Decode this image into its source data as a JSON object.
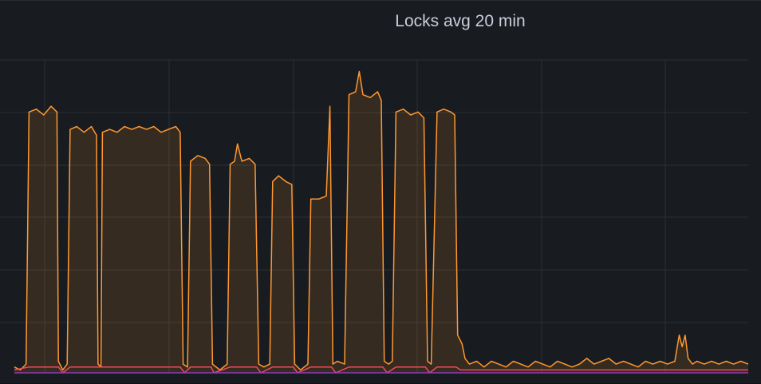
{
  "panel": {
    "title": "Locks avg 20 min"
  },
  "chart_data": {
    "type": "area",
    "title": "Locks avg 20 min",
    "xlabel": "",
    "ylabel": "",
    "grid": true,
    "x_grid_count": 6,
    "y_grid_count": 6,
    "ylim": [
      0,
      100
    ],
    "xlim": [
      0,
      100
    ],
    "series": [
      {
        "color": "#ff9830",
        "fill": "rgba(255,152,48,0.13)",
        "points": [
          [
            0,
            2
          ],
          [
            0.8,
            1
          ],
          [
            1.6,
            3
          ],
          [
            2,
            90
          ],
          [
            3,
            91
          ],
          [
            4,
            89
          ],
          [
            5,
            92
          ],
          [
            5.8,
            90
          ],
          [
            6,
            4
          ],
          [
            6.6,
            1
          ],
          [
            7.2,
            3
          ],
          [
            7.6,
            84
          ],
          [
            8.5,
            85
          ],
          [
            9.5,
            83
          ],
          [
            10.5,
            85
          ],
          [
            11.2,
            82
          ],
          [
            11.4,
            3
          ],
          [
            11.8,
            2
          ],
          [
            12,
            83
          ],
          [
            13,
            84
          ],
          [
            14,
            83
          ],
          [
            15,
            85
          ],
          [
            16,
            84
          ],
          [
            17,
            85
          ],
          [
            18,
            84
          ],
          [
            19,
            85
          ],
          [
            20,
            83
          ],
          [
            21,
            84
          ],
          [
            22,
            85
          ],
          [
            22.6,
            83
          ],
          [
            23,
            3
          ],
          [
            23.6,
            2
          ],
          [
            24,
            73
          ],
          [
            25,
            75
          ],
          [
            26,
            74
          ],
          [
            26.6,
            72
          ],
          [
            27,
            3
          ],
          [
            28,
            1
          ],
          [
            29,
            3
          ],
          [
            29.4,
            72
          ],
          [
            30,
            73
          ],
          [
            30.4,
            79
          ],
          [
            31,
            73
          ],
          [
            32,
            74
          ],
          [
            32.8,
            72
          ],
          [
            33.3,
            3
          ],
          [
            34,
            2
          ],
          [
            34.8,
            3
          ],
          [
            35.2,
            66
          ],
          [
            36,
            68
          ],
          [
            37,
            66
          ],
          [
            37.8,
            65
          ],
          [
            38.2,
            3
          ],
          [
            39,
            1
          ],
          [
            40,
            3
          ],
          [
            40.4,
            60
          ],
          [
            41.5,
            60
          ],
          [
            42.5,
            61
          ],
          [
            43,
            92
          ],
          [
            43.4,
            3
          ],
          [
            44,
            4
          ],
          [
            45,
            3
          ],
          [
            45.6,
            96
          ],
          [
            46.5,
            97
          ],
          [
            47,
            104
          ],
          [
            47.5,
            96
          ],
          [
            48.5,
            95
          ],
          [
            49.5,
            97
          ],
          [
            50,
            94
          ],
          [
            50.4,
            4
          ],
          [
            51,
            3
          ],
          [
            51.5,
            4
          ],
          [
            52,
            90
          ],
          [
            53,
            91
          ],
          [
            54,
            89
          ],
          [
            55,
            90
          ],
          [
            55.8,
            88
          ],
          [
            56.3,
            4
          ],
          [
            56.8,
            3
          ],
          [
            57.6,
            90
          ],
          [
            58.5,
            91
          ],
          [
            59.5,
            90
          ],
          [
            60,
            89
          ],
          [
            60.4,
            13
          ],
          [
            61,
            10
          ],
          [
            61.4,
            5
          ],
          [
            62,
            3
          ],
          [
            63,
            4
          ],
          [
            64,
            2
          ],
          [
            65,
            4
          ],
          [
            66,
            3
          ],
          [
            67,
            2
          ],
          [
            68,
            4
          ],
          [
            69,
            3
          ],
          [
            70,
            2
          ],
          [
            71,
            4
          ],
          [
            72,
            3
          ],
          [
            73,
            2
          ],
          [
            74,
            4
          ],
          [
            75,
            3
          ],
          [
            76,
            2
          ],
          [
            77,
            3
          ],
          [
            78,
            5
          ],
          [
            79,
            3
          ],
          [
            80,
            4
          ],
          [
            81,
            5
          ],
          [
            82,
            3
          ],
          [
            83,
            4
          ],
          [
            84,
            3
          ],
          [
            85,
            2
          ],
          [
            86,
            4
          ],
          [
            87,
            3
          ],
          [
            88,
            4
          ],
          [
            89,
            3
          ],
          [
            90,
            4
          ],
          [
            90.6,
            13
          ],
          [
            91,
            9
          ],
          [
            91.4,
            13
          ],
          [
            91.8,
            5
          ],
          [
            92.4,
            3
          ],
          [
            93,
            4
          ],
          [
            94,
            3
          ],
          [
            95,
            4
          ],
          [
            96,
            3
          ],
          [
            97,
            4
          ],
          [
            98,
            3
          ],
          [
            99,
            4
          ],
          [
            100,
            3
          ]
        ]
      },
      {
        "color": "#f2495c",
        "fill": "none",
        "points": [
          [
            0,
            1
          ],
          [
            2,
            2
          ],
          [
            6,
            2
          ],
          [
            6.6,
            0
          ],
          [
            7.6,
            2
          ],
          [
            11.2,
            2
          ],
          [
            12,
            2
          ],
          [
            22.6,
            2
          ],
          [
            23.2,
            0
          ],
          [
            24,
            2
          ],
          [
            26.8,
            2
          ],
          [
            27.2,
            0
          ],
          [
            29.4,
            2
          ],
          [
            33,
            2
          ],
          [
            33.6,
            0
          ],
          [
            35.2,
            2
          ],
          [
            38,
            2
          ],
          [
            38.6,
            0
          ],
          [
            40.4,
            2
          ],
          [
            43.2,
            2
          ],
          [
            43.8,
            0
          ],
          [
            45.6,
            2
          ],
          [
            50.2,
            2
          ],
          [
            50.8,
            0
          ],
          [
            52,
            2
          ],
          [
            56,
            2
          ],
          [
            56.6,
            0
          ],
          [
            57.6,
            2
          ],
          [
            60.2,
            2
          ],
          [
            60.8,
            1
          ],
          [
            100,
            1
          ]
        ]
      },
      {
        "color": "#8f3bb8",
        "fill": "none",
        "points": [
          [
            0,
            0
          ],
          [
            100,
            0
          ]
        ]
      }
    ]
  }
}
